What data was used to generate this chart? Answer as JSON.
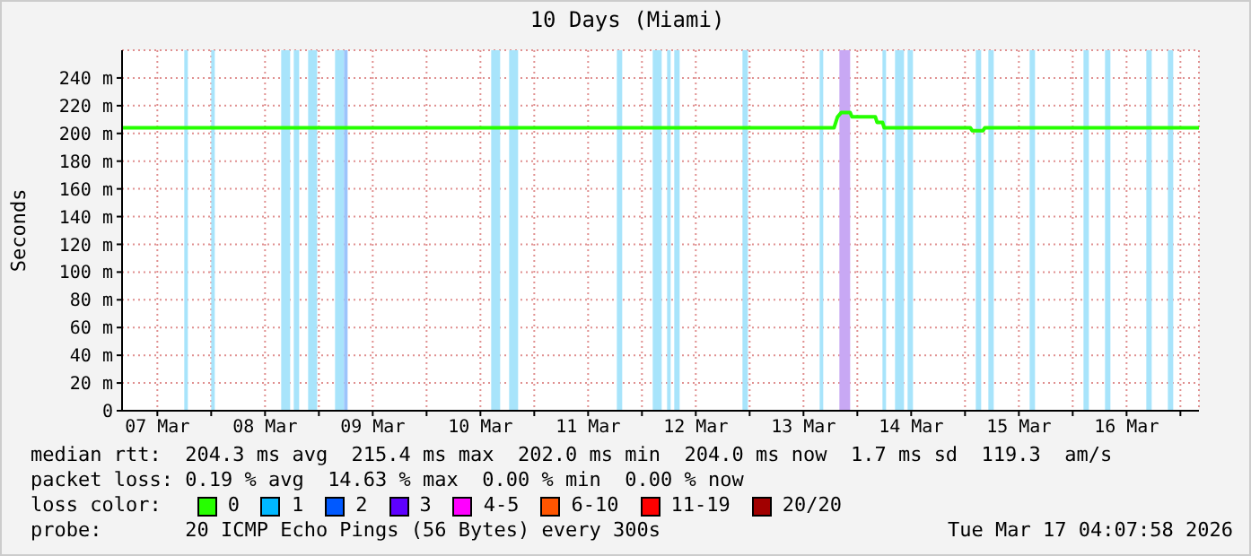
{
  "chart_data": {
    "type": "line",
    "title": "10 Days (Miami)",
    "ylabel": "Seconds",
    "legend_title": "loss color:",
    "legend": "bottom",
    "grid": true,
    "marker": "none",
    "line_style": "solid",
    "xlim": [
      "2026-03-07T04:08",
      "2026-03-17T04:08"
    ],
    "xticks": [
      {
        "value": "2026-03-07T12:00",
        "label": "07 Mar"
      },
      {
        "value": "2026-03-08T00:00",
        "label": null
      },
      {
        "value": "2026-03-08T12:00",
        "label": "08 Mar"
      },
      {
        "value": "2026-03-09T00:00",
        "label": null
      },
      {
        "value": "2026-03-09T12:00",
        "label": "09 Mar"
      },
      {
        "value": "2026-03-10T00:00",
        "label": null
      },
      {
        "value": "2026-03-10T12:00",
        "label": "10 Mar"
      },
      {
        "value": "2026-03-11T00:00",
        "label": null
      },
      {
        "value": "2026-03-11T12:00",
        "label": "11 Mar"
      },
      {
        "value": "2026-03-12T00:00",
        "label": null
      },
      {
        "value": "2026-03-12T12:00",
        "label": "12 Mar"
      },
      {
        "value": "2026-03-13T00:00",
        "label": null
      },
      {
        "value": "2026-03-13T12:00",
        "label": "13 Mar"
      },
      {
        "value": "2026-03-14T00:00",
        "label": null
      },
      {
        "value": "2026-03-14T12:00",
        "label": "14 Mar"
      },
      {
        "value": "2026-03-15T00:00",
        "label": null
      },
      {
        "value": "2026-03-15T12:00",
        "label": "15 Mar"
      },
      {
        "value": "2026-03-16T00:00",
        "label": null
      },
      {
        "value": "2026-03-16T12:00",
        "label": "16 Mar"
      },
      {
        "value": "2026-03-17T00:00",
        "label": null
      }
    ],
    "ylim": [
      0,
      260
    ],
    "yticks": [
      0,
      {
        "value": 20,
        "label": "20 m"
      },
      {
        "value": 40,
        "label": "40 m"
      },
      {
        "value": 60,
        "label": "60 m"
      },
      {
        "value": 80,
        "label": "80 m"
      },
      {
        "value": 100,
        "label": "100 m"
      },
      {
        "value": 120,
        "label": "120 m"
      },
      {
        "value": 140,
        "label": "140 m"
      },
      {
        "value": 160,
        "label": "160 m"
      },
      {
        "value": 180,
        "label": "180 m"
      },
      {
        "value": 200,
        "label": "200 m"
      },
      {
        "value": 220,
        "label": "220 m"
      },
      {
        "value": 240,
        "label": "240 m"
      }
    ],
    "series": [
      {
        "name": "0",
        "color": "#26ff00",
        "x": [
          "2026-03-07T04:08",
          "2026-03-13T18:48",
          "2026-03-13T19:36",
          "2026-03-13T20:24",
          "2026-03-13T22:24",
          "2026-03-13T22:48",
          "2026-03-14T04:00",
          "2026-03-14T04:24",
          "2026-03-14T05:36",
          "2026-03-14T06:00",
          "2026-03-15T01:12",
          "2026-03-15T01:36",
          "2026-03-15T04:00",
          "2026-03-15T04:24",
          "2026-03-17T04:08"
        ],
        "values": [
          204,
          204,
          212,
          215,
          215,
          212,
          212,
          208,
          208,
          204,
          204,
          202,
          202,
          204,
          204
        ]
      },
      {
        "name": "1",
        "color": "#00b8ff"
      },
      {
        "name": "2",
        "color": "#0059ff"
      },
      {
        "name": "3",
        "color": "#5e00ff"
      },
      {
        "name": "4-5",
        "color": "#ff00ff"
      },
      {
        "name": "6-10",
        "color": "#ff5500"
      },
      {
        "name": "11-19",
        "color": "#ff0000"
      },
      {
        "name": "20/20",
        "color": "#a10000"
      }
    ],
    "bands": [
      {
        "axis": "x",
        "from": "2026-03-07T18:00",
        "to": "2026-03-07T18:48",
        "color": "#a8e4fb"
      },
      {
        "axis": "x",
        "from": "2026-03-08T00:00",
        "to": "2026-03-08T00:48",
        "color": "#a8e4fb"
      },
      {
        "axis": "x",
        "from": "2026-03-08T15:36",
        "to": "2026-03-08T17:36",
        "color": "#a8e4fb"
      },
      {
        "axis": "x",
        "from": "2026-03-08T18:24",
        "to": "2026-03-08T19:36",
        "color": "#a8e4fb"
      },
      {
        "axis": "x",
        "from": "2026-03-08T21:36",
        "to": "2026-03-08T23:36",
        "color": "#a8e4fb"
      },
      {
        "axis": "x",
        "from": "2026-03-09T03:36",
        "to": "2026-03-09T05:36",
        "color": "#a8e4fb"
      },
      {
        "axis": "x",
        "from": "2026-03-09T05:36",
        "to": "2026-03-09T06:24",
        "color": "#9cc4fb"
      },
      {
        "axis": "x",
        "from": "2026-03-10T14:24",
        "to": "2026-03-10T16:24",
        "color": "#a8e4fb"
      },
      {
        "axis": "x",
        "from": "2026-03-10T18:24",
        "to": "2026-03-10T20:24",
        "color": "#a8e4fb"
      },
      {
        "axis": "x",
        "from": "2026-03-11T18:24",
        "to": "2026-03-11T19:36",
        "color": "#a8e4fb"
      },
      {
        "axis": "x",
        "from": "2026-03-12T02:24",
        "to": "2026-03-12T04:24",
        "color": "#a8e4fb"
      },
      {
        "axis": "x",
        "from": "2026-03-12T05:36",
        "to": "2026-03-12T06:24",
        "color": "#a8e4fb"
      },
      {
        "axis": "x",
        "from": "2026-03-12T07:12",
        "to": "2026-03-12T08:24",
        "color": "#a8e4fb"
      },
      {
        "axis": "x",
        "from": "2026-03-12T22:24",
        "to": "2026-03-12T23:36",
        "color": "#a8e4fb"
      },
      {
        "axis": "x",
        "from": "2026-03-13T15:36",
        "to": "2026-03-13T16:24",
        "color": "#a8e4fb"
      },
      {
        "axis": "x",
        "from": "2026-03-13T20:00",
        "to": "2026-03-13T22:24",
        "color": "#c8a8f4"
      },
      {
        "axis": "x",
        "from": "2026-03-14T05:36",
        "to": "2026-03-14T06:24",
        "color": "#a8e4fb"
      },
      {
        "axis": "x",
        "from": "2026-03-14T08:24",
        "to": "2026-03-14T10:24",
        "color": "#a8e4fb"
      },
      {
        "axis": "x",
        "from": "2026-03-14T11:12",
        "to": "2026-03-14T12:24",
        "color": "#a8e4fb"
      },
      {
        "axis": "x",
        "from": "2026-03-15T02:24",
        "to": "2026-03-15T03:36",
        "color": "#a8e4fb"
      },
      {
        "axis": "x",
        "from": "2026-03-15T05:12",
        "to": "2026-03-15T06:24",
        "color": "#a8e4fb"
      },
      {
        "axis": "x",
        "from": "2026-03-15T14:24",
        "to": "2026-03-15T15:36",
        "color": "#a8e4fb"
      },
      {
        "axis": "x",
        "from": "2026-03-16T02:24",
        "to": "2026-03-16T03:36",
        "color": "#a8e4fb"
      },
      {
        "axis": "x",
        "from": "2026-03-16T07:12",
        "to": "2026-03-16T08:24",
        "color": "#a8e4fb"
      },
      {
        "axis": "x",
        "from": "2026-03-16T16:24",
        "to": "2026-03-16T17:36",
        "color": "#a8e4fb"
      },
      {
        "axis": "x",
        "from": "2026-03-16T21:12",
        "to": "2026-03-16T22:24",
        "color": "#a8e4fb"
      }
    ],
    "annotations": [
      "median rtt:  204.3 ms avg  215.4 ms max  202.0 ms min  204.0 ms now  1.7 ms sd  119.3  am/s",
      "packet loss: 0.19 % avg  14.63 % max  0.00 % min  0.00 % now",
      "probe:       20 ICMP Echo Pings (56 Bytes) every 300s",
      "Tue Mar 17 04:07:58 2026"
    ]
  }
}
